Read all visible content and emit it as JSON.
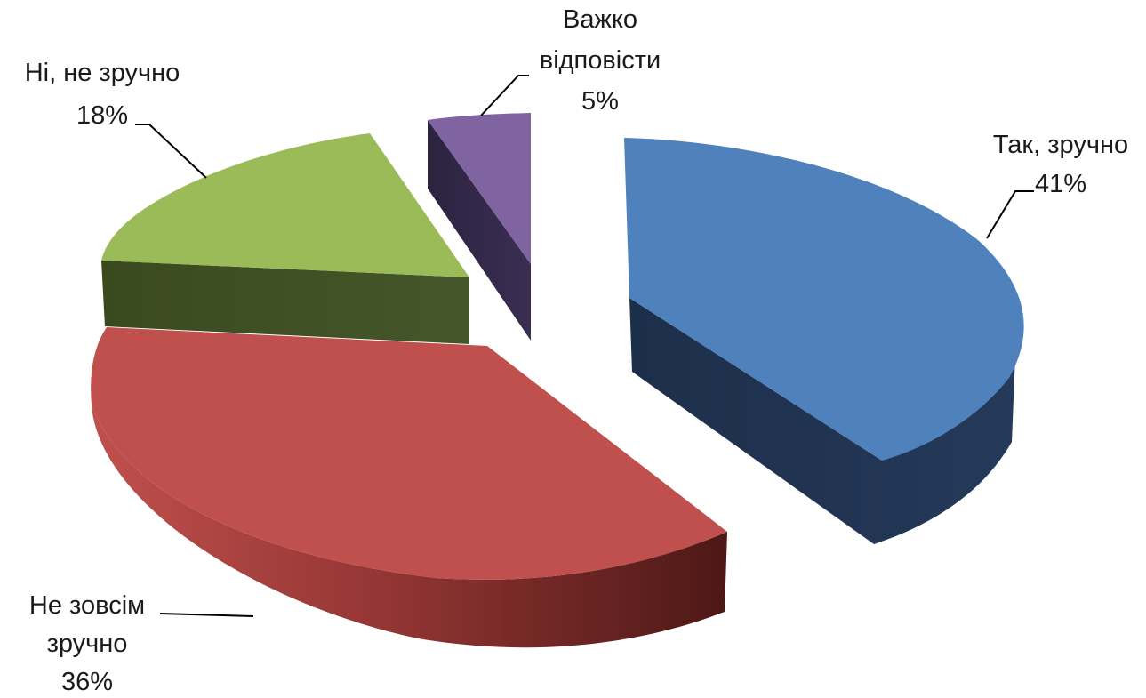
{
  "chart_data": {
    "type": "pie",
    "variant": "3d-exploded",
    "title": "",
    "slices": [
      {
        "key": "tak",
        "label_lines": [
          "Так, зручно",
          "41%"
        ],
        "label": "Так, зручно",
        "value": 41,
        "color": "#4f81bd",
        "side_color": "#1f3250"
      },
      {
        "key": "ne-zovsim",
        "label_lines": [
          "Не зовсім",
          "зручно",
          "36%"
        ],
        "label": "Не зовсім зручно",
        "value": 36,
        "color": "#c0504d",
        "side_color": "#7a2b29"
      },
      {
        "key": "ni",
        "label_lines": [
          "Ні, не зручно",
          "18%"
        ],
        "label": "Ні, не зручно",
        "value": 18,
        "color": "#9bbb59",
        "side_color": "#3f4e20"
      },
      {
        "key": "vazhko",
        "label_lines": [
          "Важко",
          "відповісти",
          "5%"
        ],
        "label": "Важко відповісти",
        "value": 5,
        "color": "#8064a2",
        "side_color": "#33284a"
      }
    ]
  }
}
